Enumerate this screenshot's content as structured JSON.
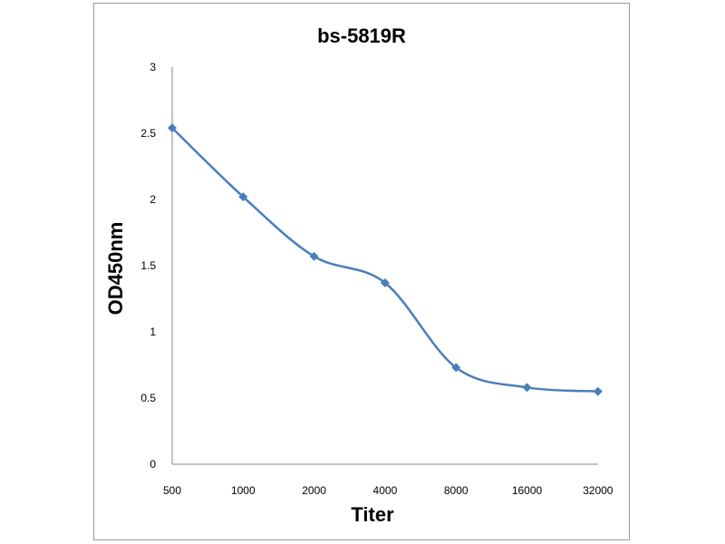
{
  "chart_data": {
    "type": "line",
    "title": "bs-5819R",
    "xlabel": "Titer",
    "ylabel": "OD450nm",
    "categories": [
      "500",
      "1000",
      "2000",
      "4000",
      "8000",
      "16000",
      "32000"
    ],
    "series": [
      {
        "values": [
          2.54,
          2.02,
          1.57,
          1.37,
          0.73,
          0.58,
          0.55
        ]
      }
    ],
    "ylim": [
      0,
      3
    ],
    "yticks": [
      "0",
      "0.5",
      "1",
      "1.5",
      "2",
      "2.5",
      "3"
    ],
    "grid": false,
    "legend": "none",
    "line_color": "#4a7ebb",
    "marker": "diamond",
    "smooth": true
  }
}
